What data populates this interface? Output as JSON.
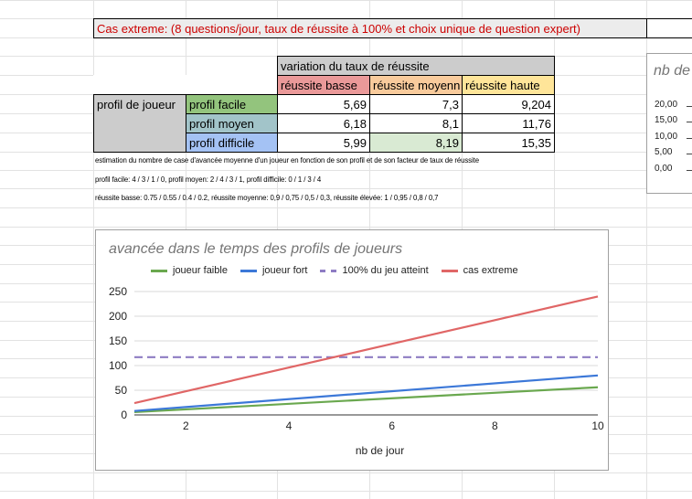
{
  "banner": {
    "text": "Cas extreme: (8 questions/jour, taux de réussite à 100% et choix unique de question expert)",
    "color": "#cc0000"
  },
  "table": {
    "group_header": "variation du taux de réussite",
    "row_header": "profil de joueur",
    "columns": [
      {
        "label": "réussite basse",
        "color": "#ea9999"
      },
      {
        "label": "réussite moyenn",
        "color": "#f9cb9c"
      },
      {
        "label": "réussite haute",
        "color": "#ffe599"
      }
    ],
    "rows": [
      {
        "label": "profil facile",
        "color": "#93c47d",
        "values": [
          "5,69",
          "7,3",
          "9,204"
        ]
      },
      {
        "label": "profil moyen",
        "color": "#a2c4c9",
        "values": [
          "6,18",
          "8,1",
          "11,76"
        ]
      },
      {
        "label": "profil difficile",
        "color": "#a4c2f4",
        "values": [
          "5,99",
          "8,19",
          "15,35"
        ]
      }
    ],
    "highlight_color": "#d9ead3"
  },
  "notes": [
    "estimation du nombre de case d'avancée moyenne d'un joueur en fonction de son profil et de son facteur de taux de réussite",
    "profil facile: 4 / 3 / 1 / 0, profil moyen: 2 / 4 / 3 / 1, profil difficile: 0 / 1 / 3 / 4",
    "réussite basse: 0.75 / 0.55 / 0.4 / 0.2, réussite moyenne: 0,9 / 0,75 / 0,5 / 0,3, réussite élevée: 1 / 0,95 / 0,8 / 0,7"
  ],
  "side_chart": {
    "title": "nb de",
    "ticks": [
      "20,00",
      "15,00",
      "10,00",
      "5,00",
      "0,00"
    ]
  },
  "chart_data": {
    "type": "line",
    "title": "avancée dans le temps des profils de joueurs",
    "xlabel": "nb de jour",
    "ylabel": "",
    "xlim": [
      1,
      10
    ],
    "ylim": [
      0,
      250
    ],
    "xticks": [
      2,
      4,
      6,
      8,
      10
    ],
    "yticks": [
      0,
      50,
      100,
      150,
      200,
      250
    ],
    "grid": true,
    "legend": "top",
    "x": [
      1,
      10
    ],
    "series": [
      {
        "name": "joueur faible",
        "color": "#6aa84f",
        "dashed": false,
        "values": [
          5.7,
          56
        ]
      },
      {
        "name": "joueur fort",
        "color": "#3c78d8",
        "dashed": false,
        "values": [
          8,
          80
        ]
      },
      {
        "name": "100% du jeu atteint",
        "color": "#8e7cc3",
        "dashed": true,
        "values": [
          117,
          117
        ]
      },
      {
        "name": "cas extreme",
        "color": "#e06666",
        "dashed": false,
        "values": [
          24,
          240
        ]
      }
    ]
  }
}
